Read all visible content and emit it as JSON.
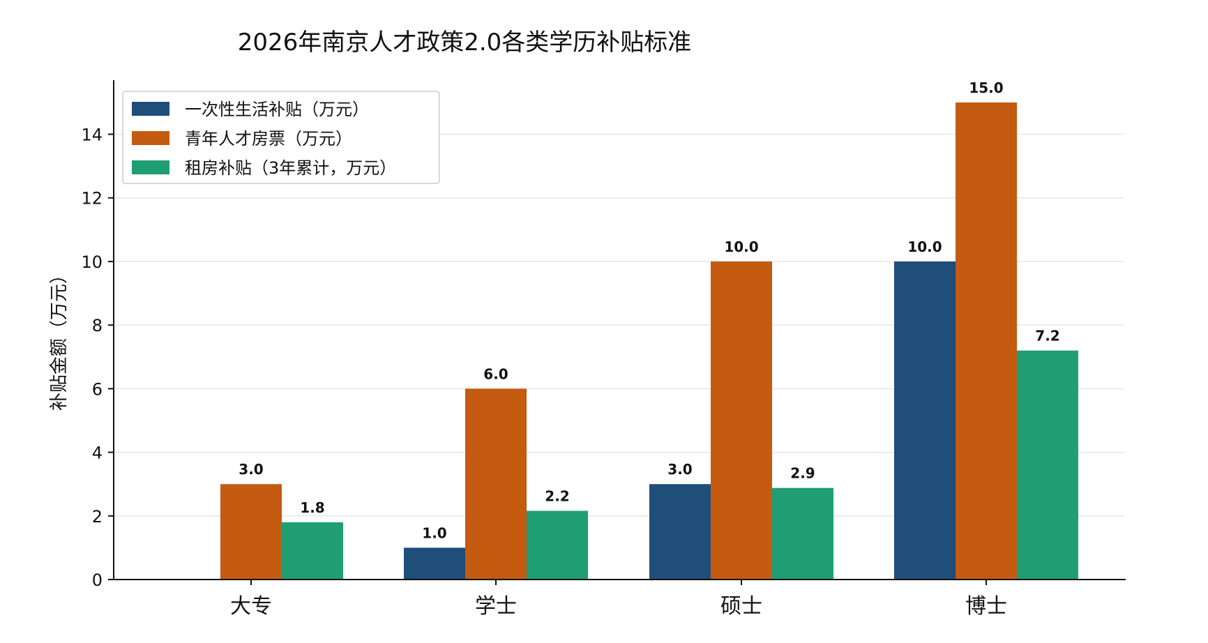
{
  "chart_data": {
    "type": "bar",
    "title": "2026年南京人才政策2.0各类学历补贴标准",
    "xlabel": "",
    "ylabel": "补贴金额（万元）",
    "categories": [
      "大专",
      "学士",
      "硕士",
      "博士"
    ],
    "series": [
      {
        "name": "一次性生活补贴（万元）",
        "color": "#1f4e79",
        "values": [
          0,
          1.0,
          3.0,
          10.0
        ],
        "labels": [
          "",
          "1.0",
          "3.0",
          "10.0"
        ]
      },
      {
        "name": "青年人才房票（万元）",
        "color": "#c55a11",
        "values": [
          3.0,
          6.0,
          10.0,
          15.0
        ],
        "labels": [
          "3.0",
          "6.0",
          "10.0",
          "15.0"
        ]
      },
      {
        "name": "租房补贴（3年累计，万元）",
        "color": "#1f9e74",
        "values": [
          1.8,
          2.16,
          2.88,
          7.2
        ],
        "labels": [
          "1.8",
          "2.2",
          "2.9",
          "7.2"
        ]
      }
    ],
    "ylim": [
      0,
      15.7
    ],
    "yticks": [
      0,
      2,
      4,
      6,
      8,
      10,
      12,
      14
    ],
    "grid": "horizontal",
    "legend_position": "top-left"
  }
}
